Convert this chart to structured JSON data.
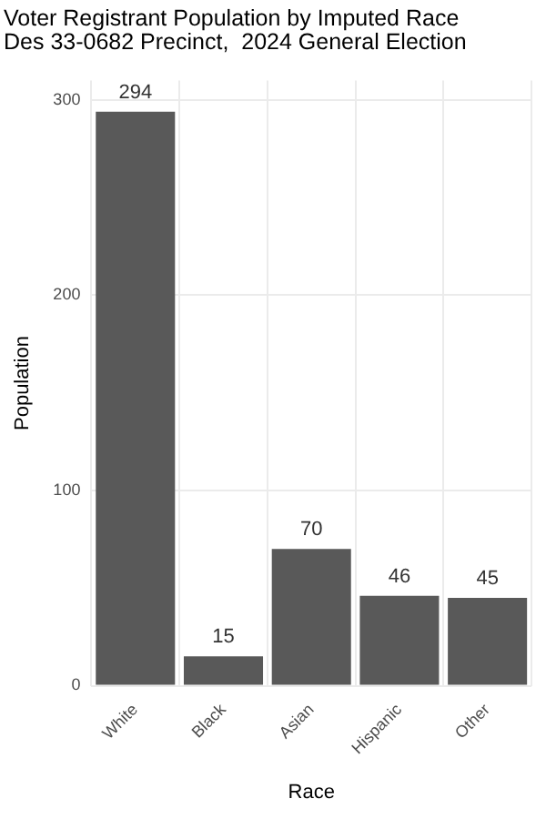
{
  "chart_data": {
    "type": "bar",
    "title": "Voter Registrant Population by Imputed Race\nDes 33-0682 Precinct,  2024 General Election",
    "xlabel": "Race",
    "ylabel": "Population",
    "categories": [
      "White",
      "Black",
      "Asian",
      "Hispanic",
      "Other"
    ],
    "values": [
      294,
      15,
      70,
      46,
      45
    ],
    "color": "#595959",
    "ylim": [
      0,
      310
    ],
    "yticks": [
      0,
      100,
      200,
      300
    ],
    "grid": true,
    "data_labels": true,
    "legend": false
  }
}
